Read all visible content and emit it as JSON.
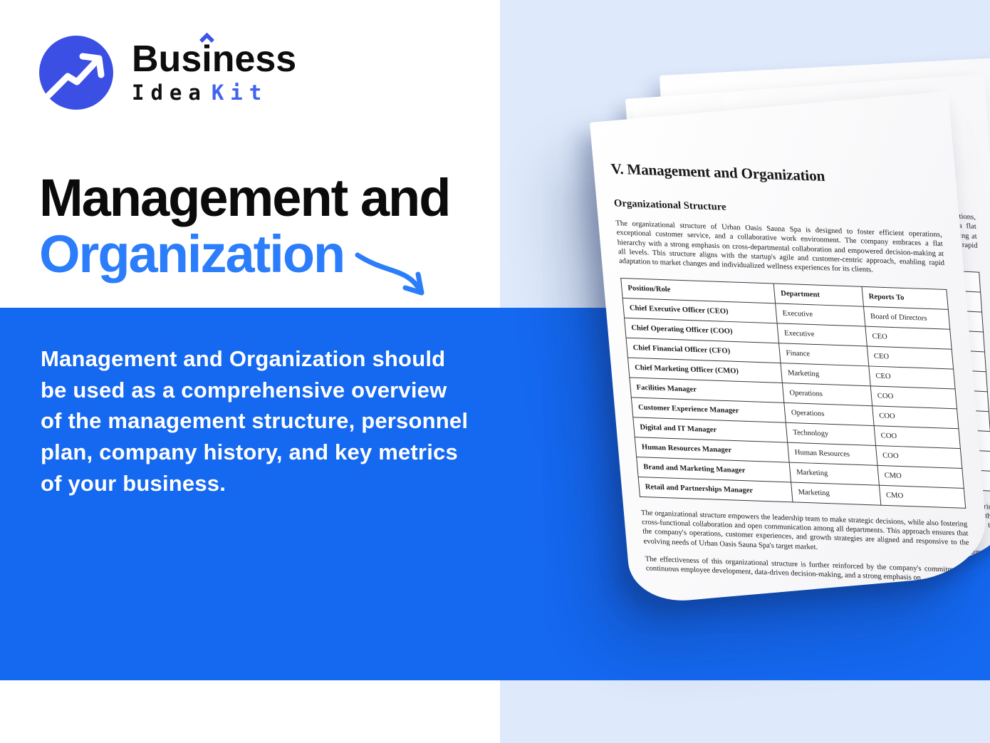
{
  "brand": {
    "line1_pre": "Bus",
    "line1_i": "i",
    "line1_post": "ness",
    "line2_word1": "Idea",
    "line2_word2": "Kit"
  },
  "headline": {
    "line1": "Management and",
    "line2": "Organization"
  },
  "description": "Management and Organization should be used as a comprehensive overview of the management structure, personnel plan, company history, and key metrics of your business.",
  "document": {
    "title": "V. Management and Organization",
    "section_heading": "Organizational Structure",
    "intro": "The organizational structure of Urban Oasis Sauna Spa is designed to foster efficient operations, exceptional customer service, and a collaborative work environment. The company embraces a flat hierarchy with a strong emphasis on cross-departmental collaboration and empowered decision-making at all levels. This structure aligns with the startup's agile and customer-centric approach, enabling rapid adaptation to market changes and individualized wellness experiences for its clients.",
    "table": {
      "headers": [
        "Position/Role",
        "Department",
        "Reports To"
      ],
      "rows": [
        [
          "Chief Executive Officer (CEO)",
          "Executive",
          "Board of Directors"
        ],
        [
          "Chief Operating Officer (COO)",
          "Executive",
          "CEO"
        ],
        [
          "Chief Financial Officer (CFO)",
          "Finance",
          "CEO"
        ],
        [
          "Chief Marketing Officer (CMO)",
          "Marketing",
          "CEO"
        ],
        [
          "Facilities Manager",
          "Operations",
          "COO"
        ],
        [
          "Customer Experience Manager",
          "Operations",
          "COO"
        ],
        [
          "Digital and IT Manager",
          "Technology",
          "COO"
        ],
        [
          "Human Resources Manager",
          "Human Resources",
          "COO"
        ],
        [
          "Brand and Marketing Manager",
          "Marketing",
          "CMO"
        ],
        [
          "Retail and Partnerships Manager",
          "Marketing",
          "CMO"
        ]
      ]
    },
    "outro1": "The organizational structure empowers the leadership team to make strategic decisions, while also fostering cross-functional collaboration and open communication among all departments. This approach ensures that the company's operations, customer experiences, and growth strategies are aligned and responsive to the evolving needs of Urban Oasis Sauna Spa's target market.",
    "outro2": "The effectiveness of this organizational structure is further reinforced by the company's commitment to continuous employee development, data-driven decision-making, and a strong emphasis on"
  },
  "colors": {
    "band_blue": "#1568F0",
    "headline_blue": "#2B7DFB",
    "panel_blue": "#DEE9FB",
    "logo_blue": "#3C4FE4",
    "kit_blue": "#3F63EE"
  }
}
